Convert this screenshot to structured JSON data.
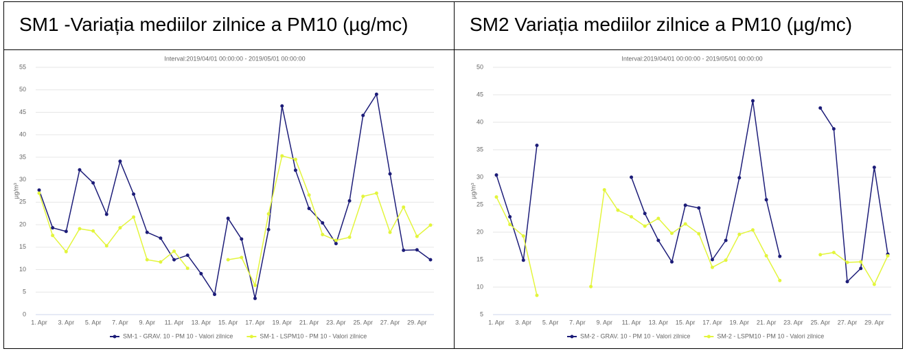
{
  "chart_data": [
    {
      "type": "line",
      "title": "SM1 -Variația mediilor zilnice a PM10 (µg/mc)",
      "subtitle": "Interval:2019/04/01 00:00:00 - 2019/05/01 00:00:00",
      "ylabel": "µg/m³",
      "categories": [
        "1. Apr",
        null,
        "3. Apr",
        null,
        "5. Apr",
        null,
        "7. Apr",
        null,
        "9. Apr",
        null,
        "11. Apr",
        null,
        "13. Apr",
        null,
        "15. Apr",
        null,
        "17. Apr",
        null,
        "19. Apr",
        null,
        "21. Apr",
        null,
        "23. Apr",
        null,
        "25. Apr",
        null,
        "27. Apr",
        null,
        "29. Apr",
        null
      ],
      "series": [
        {
          "name": "SM-1 - GRAV. 10 - PM 10 - Valori zilnice",
          "color": "#1c1c78",
          "values": [
            27.7,
            19.3,
            18.5,
            32.2,
            29.3,
            22.3,
            34.1,
            26.8,
            18.3,
            17.0,
            12.2,
            13.2,
            9.1,
            4.5,
            21.4,
            16.8,
            3.6,
            18.9,
            46.4,
            32.1,
            23.6,
            20.4,
            15.8,
            25.3,
            44.3,
            49.0,
            31.3,
            14.3,
            14.4,
            12.2
          ]
        },
        {
          "name": "SM-1 - LSPM10 - PM 10 - Valori zilnice",
          "color": "#e3f53c",
          "values": [
            27.0,
            17.6,
            14.0,
            19.1,
            18.6,
            15.3,
            19.3,
            21.7,
            12.2,
            11.7,
            14.1,
            10.3,
            null,
            null,
            12.2,
            12.7,
            6.5,
            22.4,
            35.3,
            34.5,
            26.6,
            17.8,
            16.5,
            17.2,
            26.3,
            27.0,
            18.3,
            23.9,
            17.4,
            19.9
          ]
        }
      ],
      "ylim": [
        0,
        55
      ],
      "yticks": [
        0,
        5,
        10,
        15,
        20,
        25,
        30,
        35,
        40,
        45,
        50,
        55
      ],
      "grid": true,
      "legend": "bottom"
    },
    {
      "type": "line",
      "title": "SM2 Variația mediilor zilnice a PM10 (µg/mc)",
      "subtitle": "Interval:2019/04/01 00:00:00 - 2019/05/01 00:00:00",
      "ylabel": "µg/m³",
      "categories": [
        "1. Apr",
        null,
        "3. Apr",
        null,
        "5. Apr",
        null,
        "7. Apr",
        null,
        "9. Apr",
        null,
        "11. Apr",
        null,
        "13. Apr",
        null,
        "15. Apr",
        null,
        "17. Apr",
        null,
        "19. Apr",
        null,
        "21. Apr",
        null,
        "23. Apr",
        null,
        "25. Apr",
        null,
        "27. Apr",
        null,
        "29. Apr",
        null
      ],
      "series": [
        {
          "name": "SM-2 - GRAV. 10 - PM 10 - Valori zilnice",
          "color": "#1c1c78",
          "values": [
            30.4,
            22.8,
            14.9,
            35.8,
            null,
            null,
            null,
            null,
            null,
            null,
            30.0,
            23.4,
            18.5,
            14.6,
            24.9,
            24.4,
            15.0,
            18.5,
            29.9,
            43.9,
            25.9,
            15.6,
            null,
            null,
            42.6,
            38.8,
            11.0,
            13.4,
            31.8,
            16.0
          ]
        },
        {
          "name": "SM-2 - LSPM10 - PM 10 - Valori zilnice",
          "color": "#e3f53c",
          "values": [
            26.4,
            21.4,
            19.3,
            8.5,
            null,
            null,
            null,
            10.1,
            27.7,
            24.0,
            22.8,
            21.1,
            22.5,
            19.8,
            21.5,
            19.7,
            13.6,
            14.9,
            19.6,
            20.4,
            15.7,
            11.2,
            null,
            null,
            15.9,
            16.3,
            14.5,
            14.6,
            10.5,
            15.7
          ]
        }
      ],
      "ylim": [
        5,
        50
      ],
      "yticks": [
        5,
        10,
        15,
        20,
        25,
        30,
        35,
        40,
        45,
        50
      ],
      "grid": true,
      "legend": "bottom"
    }
  ]
}
